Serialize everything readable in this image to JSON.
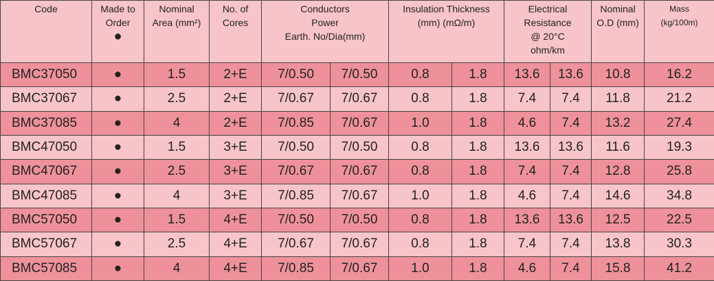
{
  "table": {
    "header": [
      "Code",
      "Made to\nOrder",
      "Nominal\nArea (mm²)",
      "No. of\nCores",
      "Conductors\nPower\nEarth. No/Dia(mm)",
      "Insulation Thickness\n(mm) (mΩ/m)",
      "Electrical\nResistance\n@ 20°C\nohm/km",
      "Nominal\nO.D (mm)",
      "Mass\n(kg/100m)"
    ],
    "header_mark": "●",
    "rows": [
      [
        "BMC37050",
        "●",
        "1.5",
        "2+E",
        "7/0.50",
        "7/0.50",
        "0.8",
        "1.8",
        "13.6",
        "13.6",
        "10.8",
        "16.2"
      ],
      [
        "BMC37067",
        "●",
        "2.5",
        "2+E",
        "7/0.67",
        "7/0.67",
        "0.8",
        "1.8",
        "7.4",
        "7.4",
        "11.8",
        "21.2"
      ],
      [
        "BMC37085",
        "●",
        "4",
        "2+E",
        "7/0.85",
        "7/0.67",
        "1.0",
        "1.8",
        "4.6",
        "7.4",
        "13.2",
        "27.4"
      ],
      [
        "BMC47050",
        "●",
        "1.5",
        "3+E",
        "7/0.50",
        "7/0.50",
        "0.8",
        "1.8",
        "13.6",
        "13.6",
        "11.6",
        "19.3"
      ],
      [
        "BMC47067",
        "●",
        "2.5",
        "3+E",
        "7/0.67",
        "7/0.67",
        "0.8",
        "1.8",
        "7.4",
        "7.4",
        "12.8",
        "25.8"
      ],
      [
        "BMC47085",
        "●",
        "4",
        "3+E",
        "7/0.85",
        "7/0.67",
        "1.0",
        "1.8",
        "4.6",
        "7.4",
        "14.6",
        "34.8"
      ],
      [
        "BMC57050",
        "●",
        "1.5",
        "4+E",
        "7/0.50",
        "7/0.50",
        "0.8",
        "1.8",
        "13.6",
        "13.6",
        "12.5",
        "22.5"
      ],
      [
        "BMC57067",
        "●",
        "2.5",
        "4+E",
        "7/0.67",
        "7/0.67",
        "0.8",
        "1.8",
        "7.4",
        "7.4",
        "13.8",
        "30.3"
      ],
      [
        "BMC57085",
        "●",
        "4",
        "4+E",
        "7/0.85",
        "7/0.67",
        "1.0",
        "1.8",
        "4.6",
        "7.4",
        "15.8",
        "41.2"
      ]
    ]
  }
}
